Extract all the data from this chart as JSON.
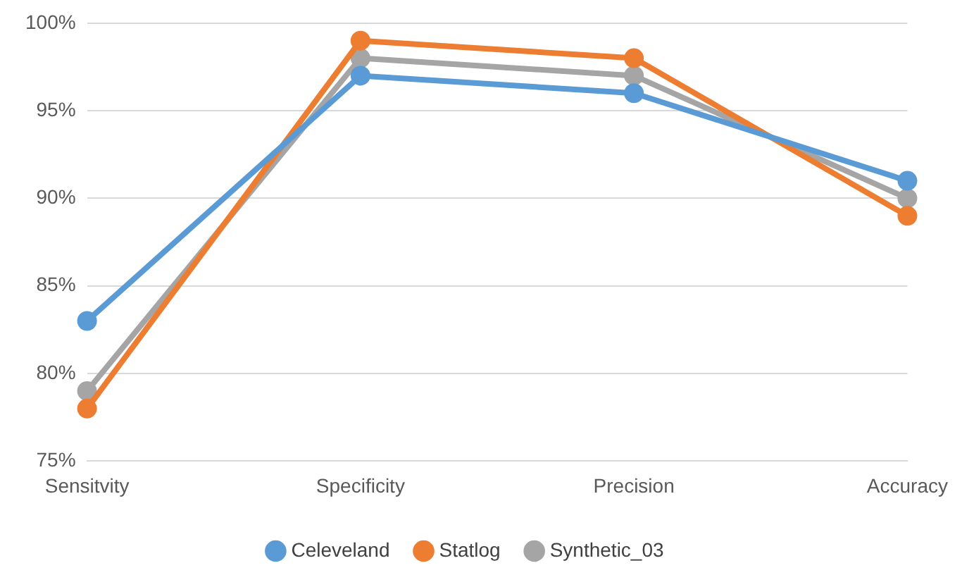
{
  "chart_data": {
    "type": "line",
    "categories": [
      "Sensitvity",
      "Specificity",
      "Precision",
      "Accuracy"
    ],
    "series": [
      {
        "name": "Celeveland",
        "color": "#5b9bd5",
        "values": [
          83,
          97,
          96,
          91
        ]
      },
      {
        "name": "Statlog",
        "color": "#ed7d31",
        "values": [
          78,
          99,
          98,
          89
        ]
      },
      {
        "name": "Synthetic_03",
        "color": "#a5a5a5",
        "values": [
          79,
          98,
          97,
          90
        ]
      }
    ],
    "ylim": [
      75,
      100
    ],
    "yticks": [
      {
        "value": 75,
        "label": "75%"
      },
      {
        "value": 80,
        "label": "80%"
      },
      {
        "value": 85,
        "label": "85%"
      },
      {
        "value": 90,
        "label": "90%"
      },
      {
        "value": 95,
        "label": "95%"
      },
      {
        "value": 100,
        "label": "100%"
      }
    ],
    "grid": "y",
    "legend": "bottom",
    "marker": "circle",
    "line_style": "solid"
  }
}
